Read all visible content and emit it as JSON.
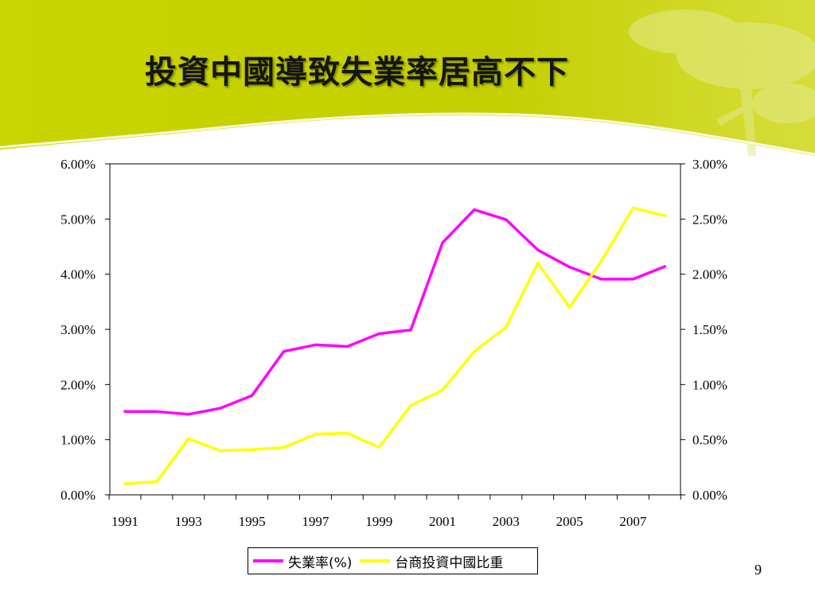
{
  "slide": {
    "title": "投資中國導致失業率居高不下",
    "page_number": "9"
  },
  "colors": {
    "banner": "#c8d400",
    "unemployment": "#ff00ff",
    "investment": "#ffff00"
  },
  "chart_data": {
    "type": "line",
    "title": "",
    "x": [
      1991,
      1992,
      1993,
      1994,
      1995,
      1996,
      1997,
      1998,
      1999,
      2000,
      2001,
      2002,
      2003,
      2004,
      2005,
      2006,
      2007,
      2008
    ],
    "x_tick_labels": [
      "1991",
      "1993",
      "1995",
      "1997",
      "1999",
      "2001",
      "2003",
      "2005",
      "2007"
    ],
    "y_left": {
      "range": [
        0,
        6
      ],
      "tick_labels": [
        "0.00%",
        "1.00%",
        "2.00%",
        "3.00%",
        "4.00%",
        "5.00%",
        "6.00%"
      ]
    },
    "y_right": {
      "range": [
        0,
        3
      ],
      "tick_labels": [
        "0.00%",
        "0.50%",
        "1.00%",
        "1.50%",
        "2.00%",
        "2.50%",
        "3.00%"
      ]
    },
    "series": [
      {
        "name": "失業率(%)",
        "axis": "left",
        "values": [
          1.51,
          1.51,
          1.46,
          1.57,
          1.8,
          2.6,
          2.72,
          2.69,
          2.92,
          2.99,
          4.57,
          5.17,
          4.99,
          4.44,
          4.13,
          3.91,
          3.91,
          4.14
        ]
      },
      {
        "name": "台商投資中國比重",
        "axis": "right",
        "values": [
          0.1,
          0.12,
          0.51,
          0.4,
          0.41,
          0.43,
          0.55,
          0.56,
          0.43,
          0.81,
          0.95,
          1.3,
          1.52,
          2.1,
          1.7,
          2.12,
          2.6,
          2.53
        ]
      }
    ],
    "legend_position": "bottom",
    "grid": false
  }
}
